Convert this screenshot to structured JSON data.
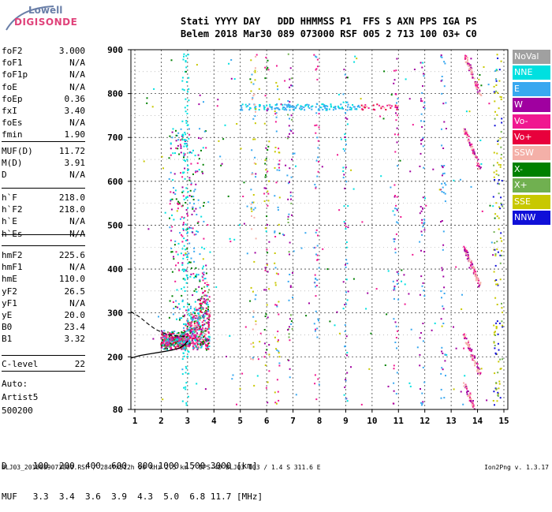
{
  "logo": {
    "line1": "Lowell",
    "line2": "DIGISONDE"
  },
  "header": {
    "line1": "Stati YYYY DAY   DDD HHMMSS P1  FFS S AXN PPS IGA PS",
    "line2": "Belem 2018 Mar30 089 073000 RSF 005 2 713 100 03+ C0"
  },
  "params_a": [
    {
      "label": "foF2",
      "value": "3.000"
    },
    {
      "label": "foF1",
      "value": "N/A"
    },
    {
      "label": "foF1p",
      "value": "N/A"
    },
    {
      "label": "foE",
      "value": "N/A"
    },
    {
      "label": "foEp",
      "value": "0.36"
    },
    {
      "label": "fxI",
      "value": "3.40"
    },
    {
      "label": "foEs",
      "value": "N/A"
    },
    {
      "label": "fmin",
      "value": "1.90"
    }
  ],
  "params_b": [
    {
      "label": "MUF(D)",
      "value": "11.72"
    },
    {
      "label": "M(D)",
      "value": "3.91"
    },
    {
      "label": "D",
      "value": "N/A"
    }
  ],
  "params_c": [
    {
      "label": "h`F",
      "value": "218.0"
    },
    {
      "label": "h`F2",
      "value": "218.0"
    },
    {
      "label": "h`E",
      "value": "N/A"
    },
    {
      "label": "h`Es",
      "value": "N/A"
    }
  ],
  "params_d": [
    {
      "label": "hmF2",
      "value": "225.6"
    },
    {
      "label": "hmF1",
      "value": "N/A"
    },
    {
      "label": "hmE",
      "value": "110.0"
    },
    {
      "label": "yF2",
      "value": "26.5"
    },
    {
      "label": "yF1",
      "value": "N/A"
    },
    {
      "label": "yE",
      "value": "20.0"
    },
    {
      "label": "B0",
      "value": "23.4"
    },
    {
      "label": "B1",
      "value": "3.32"
    }
  ],
  "params_e": [
    {
      "label": "C-level",
      "value": "22"
    }
  ],
  "autoscaling": {
    "line1": "Auto:",
    "line2": "Artist5",
    "line3": "500200"
  },
  "legend": [
    {
      "label": "NoVal",
      "color": "#a0a0a0"
    },
    {
      "label": "NNE",
      "color": "#00e0e0"
    },
    {
      "label": "E",
      "color": "#38a8f0"
    },
    {
      "label": "W",
      "color": "#a000a0"
    },
    {
      "label": "Vo-",
      "color": "#f01890"
    },
    {
      "label": "Vo+",
      "color": "#e8003c"
    },
    {
      "label": "SSW",
      "color": "#f4b0a8"
    },
    {
      "label": "X-",
      "color": "#008000"
    },
    {
      "label": "X+",
      "color": "#70b050"
    },
    {
      "label": "SSE",
      "color": "#c8c800"
    },
    {
      "label": "NNW",
      "color": "#1010d8"
    }
  ],
  "chart_data": {
    "type": "scatter",
    "x_ticks": [
      "1",
      "2",
      "3",
      "4",
      "5",
      "6",
      "7",
      "8",
      "9",
      "10",
      "11",
      "12",
      "13",
      "14",
      "15"
    ],
    "y_ticks": [
      "80",
      "200",
      "300",
      "400",
      "500",
      "600",
      "700",
      "800",
      "900"
    ],
    "xlim": [
      0.85,
      15.15
    ],
    "ylim": [
      80,
      900
    ],
    "x_unit": "MHz",
    "y_unit": "km",
    "grid": true
  },
  "d_table": {
    "line1": "D     100  200  400  600  800 1000 1500 3000 [km]",
    "line2": "MUF   3.3  3.4  3.6  3.9  4.3  5.0  6.8 11.7 [MHz]"
  },
  "footer": {
    "file": "BLJ03_2018089073000.RSF / 284fx512h 50 kHz 2.5 km / DPS-4D BLJ03 103 / 1.4 S 311.6 E",
    "version": "Ion2Png v. 1.3.17"
  }
}
